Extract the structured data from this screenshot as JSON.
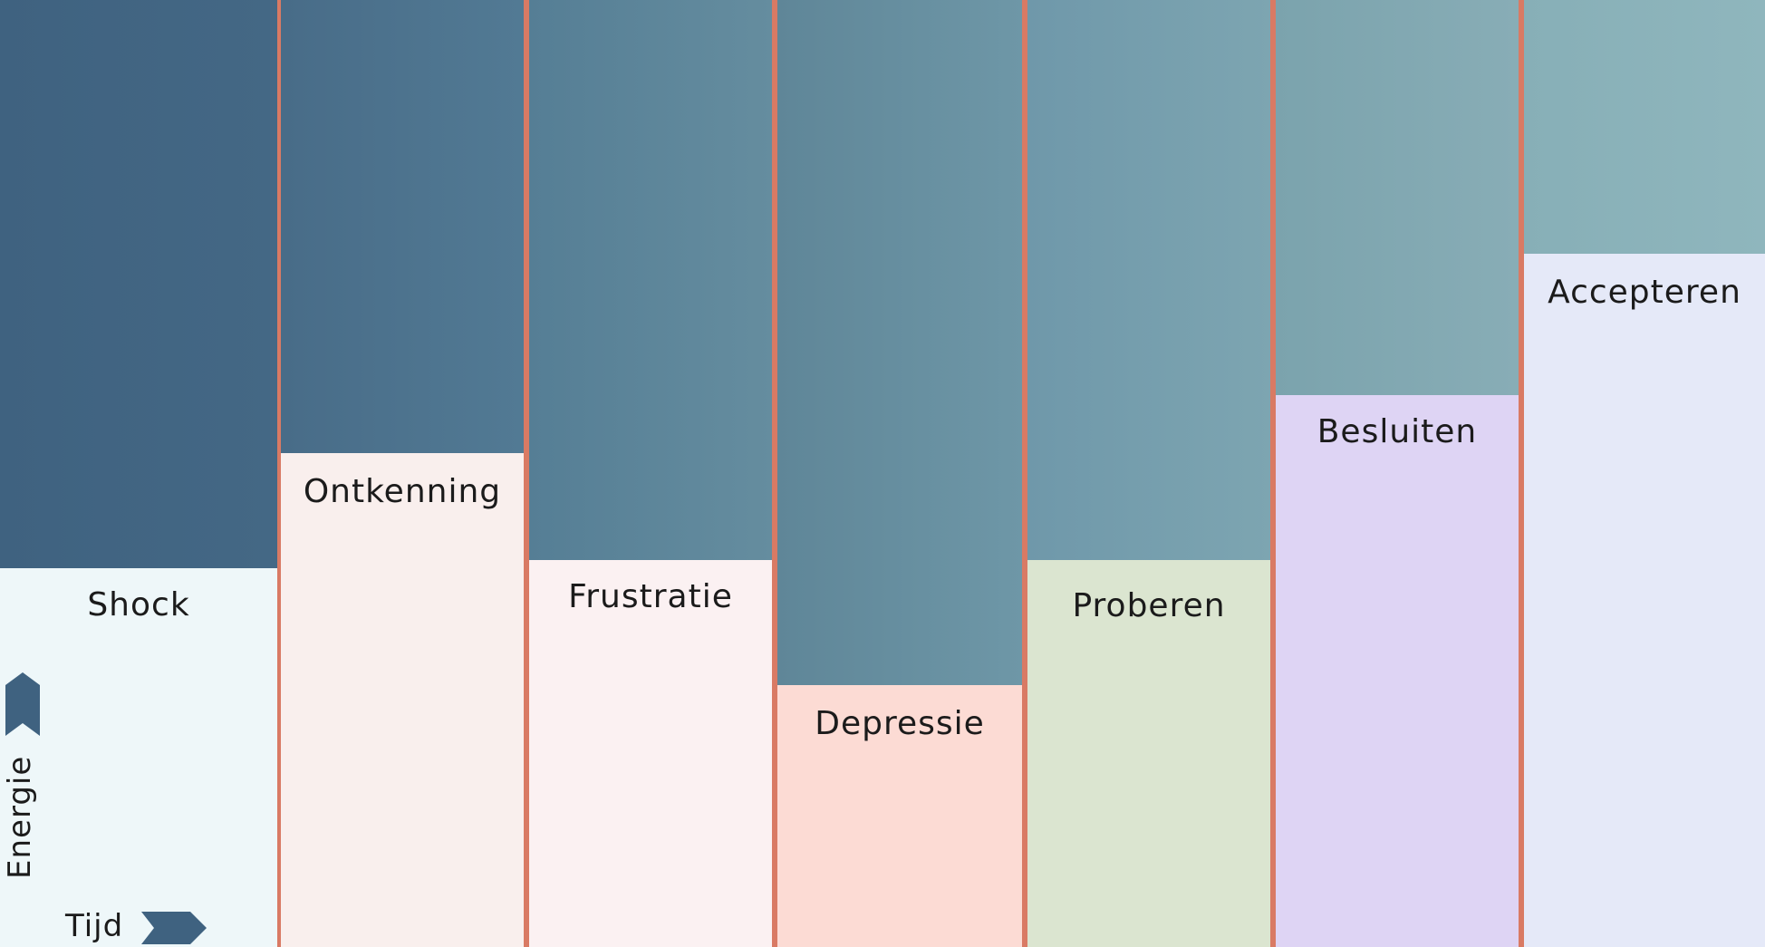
{
  "stages": [
    {
      "label": "Shock",
      "top_color_a": "#3f6280",
      "top_color_b": "#446885",
      "bottom_color": "#eef7f9"
    },
    {
      "label": "Ontkenning",
      "top_color_a": "#486c88",
      "top_color_b": "#527a94",
      "bottom_color": "#f9efed"
    },
    {
      "label": "Frustratie",
      "top_color_a": "#557e95",
      "top_color_b": "#658d9f",
      "bottom_color": "#fbf1f2"
    },
    {
      "label": "Depressie",
      "top_color_a": "#5f8698",
      "top_color_b": "#6e97a7",
      "bottom_color": "#fcdbd4"
    },
    {
      "label": "Proberen",
      "top_color_a": "#6f98aa",
      "top_color_b": "#7da5b1",
      "bottom_color": "#dbe5d0"
    },
    {
      "label": "Besluiten",
      "top_color_a": "#7ba3ad",
      "top_color_b": "#88adb6",
      "bottom_color": "#ded4f4"
    },
    {
      "label": "Accepteren",
      "top_color_a": "#87afb7",
      "top_color_b": "#8fb6bd",
      "bottom_color": "#e5e9f8"
    }
  ],
  "axes": {
    "energy_label": "Energie",
    "time_label": "Tijd",
    "arrow_color": "#3f6280"
  },
  "colors": {
    "divider": "#d97a64"
  }
}
